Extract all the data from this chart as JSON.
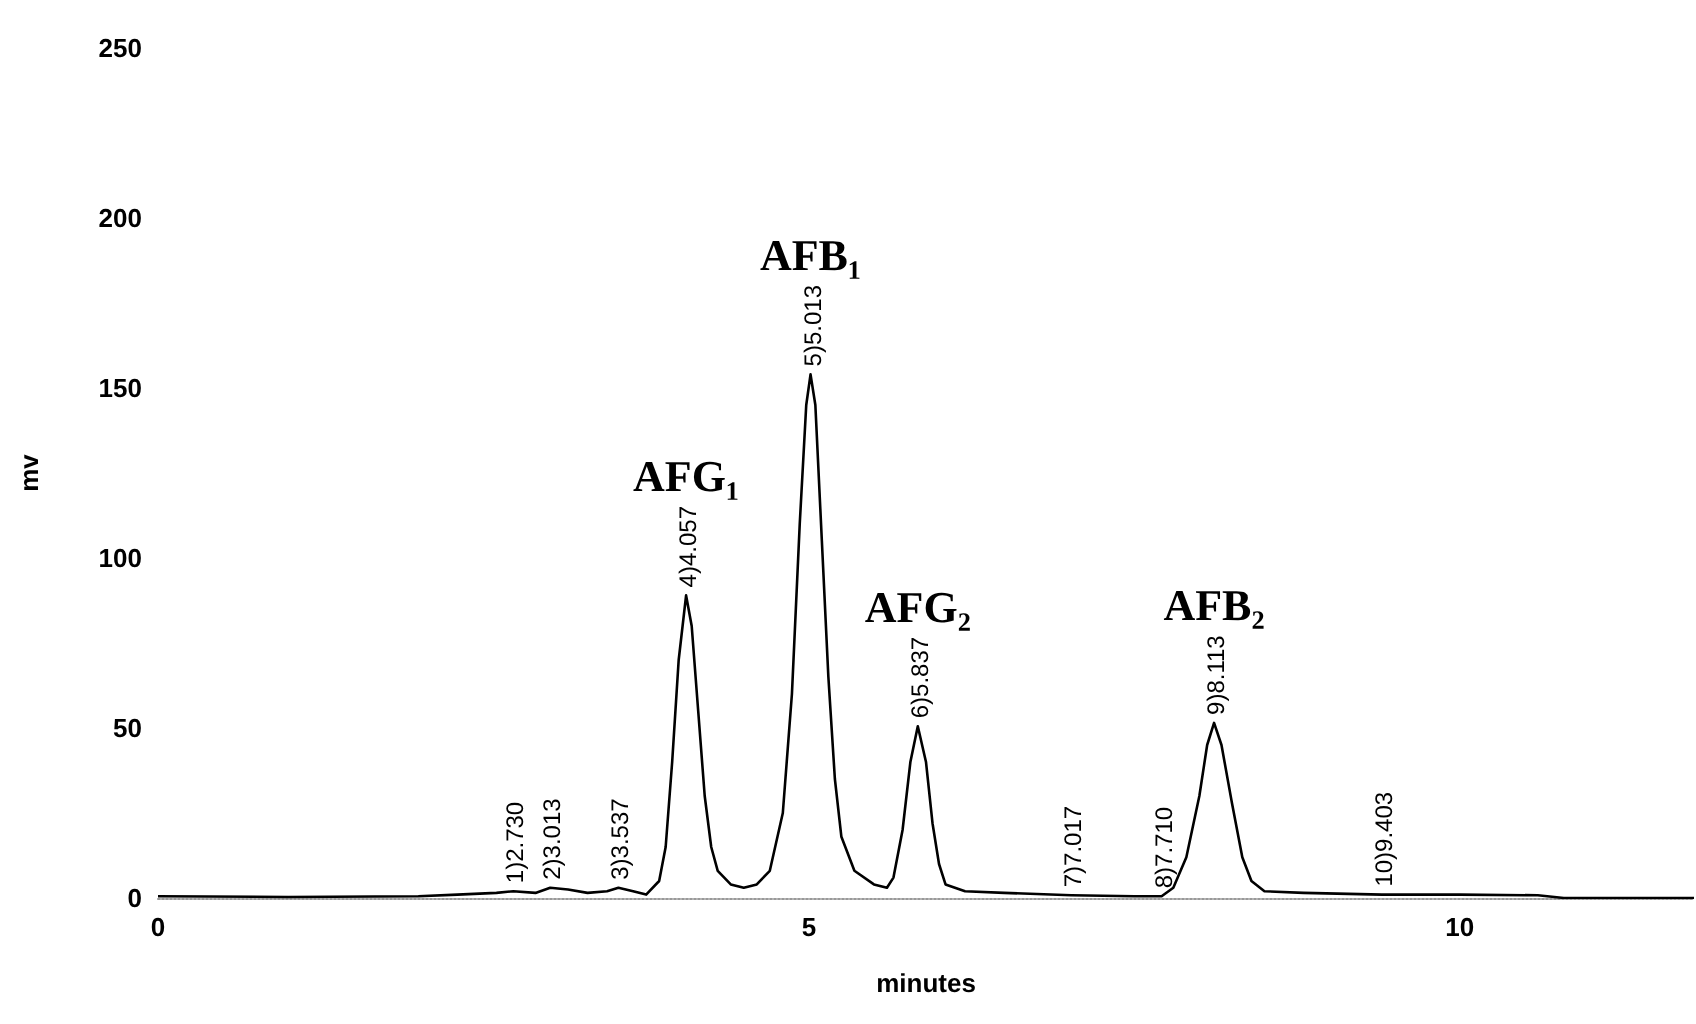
{
  "chart_data": {
    "type": "line",
    "xlabel": "minutes",
    "ylabel": "mv",
    "xlim": [
      0,
      11.8
    ],
    "ylim": [
      0,
      250
    ],
    "xticks": [
      0,
      5,
      10
    ],
    "yticks": [
      0,
      50,
      100,
      150,
      200,
      250
    ],
    "annotations": [
      {
        "text": "1)2.730",
        "x": 2.73,
        "y": 2
      },
      {
        "text": "2)3.013",
        "x": 3.013,
        "y": 3
      },
      {
        "text": "3)3.537",
        "x": 3.537,
        "y": 3
      },
      {
        "text": "4)4.057",
        "x": 4.057,
        "y": 89
      },
      {
        "text": "AFG₁",
        "x": 4.057,
        "y": 89
      },
      {
        "text": "5)5.013",
        "x": 5.013,
        "y": 154
      },
      {
        "text": "AFB₁",
        "x": 5.013,
        "y": 154
      },
      {
        "text": "6)5.837",
        "x": 5.837,
        "y": 50.5
      },
      {
        "text": "AFG₂",
        "x": 5.837,
        "y": 50.5
      },
      {
        "text": "7)7.017",
        "x": 7.017,
        "y": 0.8
      },
      {
        "text": "8)7.710",
        "x": 7.71,
        "y": 0.5
      },
      {
        "text": "9)8.113",
        "x": 8.113,
        "y": 51.5
      },
      {
        "text": "AFB₂",
        "x": 8.113,
        "y": 51.5
      },
      {
        "text": "10)9.403",
        "x": 9.403,
        "y": 1
      }
    ],
    "series": [
      {
        "color": "#000000",
        "x": [
          0,
          1,
          2,
          2.3,
          2.6,
          2.73,
          2.9,
          3.013,
          3.15,
          3.3,
          3.45,
          3.537,
          3.65,
          3.75,
          3.85,
          3.9,
          3.95,
          4.0,
          4.057,
          4.1,
          4.15,
          4.2,
          4.25,
          4.3,
          4.4,
          4.5,
          4.6,
          4.7,
          4.8,
          4.87,
          4.93,
          4.98,
          5.013,
          5.05,
          5.1,
          5.15,
          5.2,
          5.25,
          5.35,
          5.5,
          5.6,
          5.65,
          5.72,
          5.78,
          5.837,
          5.9,
          5.95,
          6.0,
          6.05,
          6.2,
          6.5,
          7.017,
          7.5,
          7.71,
          7.8,
          7.9,
          8.0,
          8.06,
          8.113,
          8.17,
          8.25,
          8.33,
          8.4,
          8.5,
          8.8,
          9.403,
          10,
          10.6,
          10.8,
          11.8
        ],
        "values": [
          0.5,
          0.3,
          0.5,
          1,
          1.5,
          2,
          1.5,
          3,
          2.5,
          1.5,
          2,
          3,
          2,
          1,
          5,
          15,
          40,
          70,
          89,
          80,
          55,
          30,
          15,
          8,
          4,
          3,
          4,
          8,
          25,
          60,
          110,
          145,
          154,
          145,
          105,
          65,
          35,
          18,
          8,
          4,
          3,
          6,
          20,
          40,
          50.5,
          40,
          22,
          10,
          4,
          2,
          1.5,
          0.8,
          0.5,
          0.5,
          3,
          12,
          30,
          45,
          51.5,
          45,
          28,
          12,
          5,
          2,
          1.5,
          1,
          1,
          0.8,
          0,
          0
        ]
      }
    ]
  }
}
